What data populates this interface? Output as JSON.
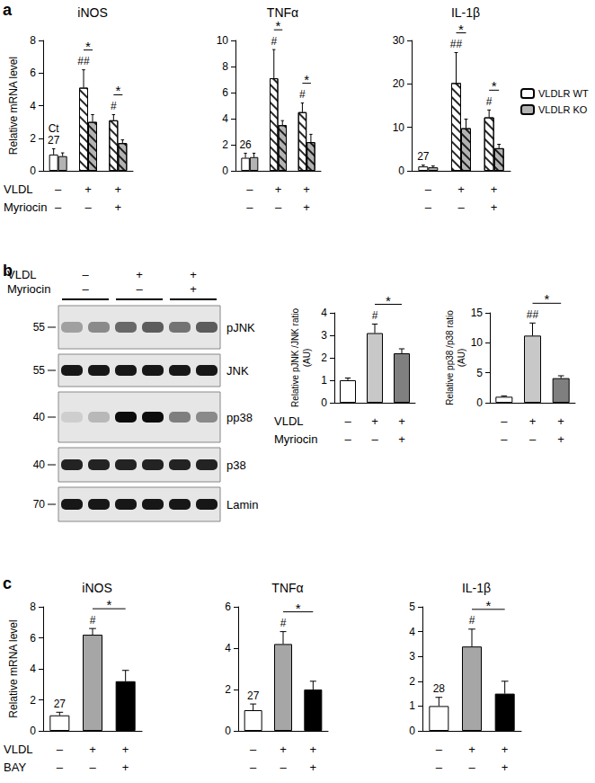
{
  "panels": [
    "a",
    "b",
    "c"
  ],
  "chart_data": [
    {
      "type": "bar",
      "title": "iNOS",
      "y_label": "Relative mRNA level",
      "categories": [
        null,
        null,
        null
      ],
      "conditions": [
        {
          "label": "VLDL",
          "values": [
            "–",
            "+",
            "+"
          ]
        },
        {
          "label": "Myriocin",
          "values": [
            "–",
            "–",
            "+"
          ]
        }
      ],
      "ylim": [
        0,
        8
      ],
      "yticks": [
        0,
        2,
        4,
        6,
        8
      ],
      "series": [
        {
          "name": "VLDLR WT",
          "color": "#ffffff",
          "values": [
            1.0,
            5.1,
            3.1
          ],
          "errors": [
            0.35,
            1.1,
            0.35
          ],
          "marks": [
            "Ct\n27",
            "##",
            "#"
          ]
        },
        {
          "name": "VLDLR KO",
          "color": "#b3b3b3",
          "values": [
            0.9,
            3.0,
            1.7
          ],
          "errors": [
            0.2,
            0.45,
            0.2
          ]
        }
      ],
      "significance": [
        {
          "text": "*",
          "category": 1
        },
        {
          "text": "*",
          "category": 2
        }
      ]
    },
    {
      "type": "bar",
      "title": "TNFα",
      "categories": [
        null,
        null,
        null
      ],
      "conditions": [
        {
          "values": [
            "–",
            "+",
            "+"
          ]
        },
        {
          "values": [
            "–",
            "–",
            "+"
          ]
        }
      ],
      "ylim": [
        0,
        10
      ],
      "yticks": [
        0,
        2,
        4,
        6,
        8,
        10
      ],
      "series": [
        {
          "name": "VLDLR WT",
          "color": "#ffffff",
          "values": [
            1.0,
            7.1,
            4.5
          ],
          "errors": [
            0.35,
            2.2,
            0.7
          ],
          "marks": [
            "26",
            "#",
            "#"
          ]
        },
        {
          "name": "VLDLR KO",
          "color": "#b3b3b3",
          "values": [
            1.05,
            3.5,
            2.2
          ],
          "errors": [
            0.3,
            0.35,
            0.6
          ]
        }
      ],
      "significance": [
        {
          "text": "*",
          "category": 1
        },
        {
          "text": "*",
          "category": 2
        }
      ]
    },
    {
      "type": "bar",
      "title": "IL-1β",
      "legend": "top-right",
      "categories": [
        null,
        null,
        null
      ],
      "conditions": [
        {
          "values": [
            "–",
            "+",
            "+"
          ]
        },
        {
          "values": [
            "–",
            "–",
            "+"
          ]
        }
      ],
      "ylim": [
        0,
        30
      ],
      "yticks": [
        0,
        10,
        20,
        30
      ],
      "series": [
        {
          "name": "VLDLR WT",
          "color": "#ffffff",
          "values": [
            1.0,
            20.2,
            12.3
          ],
          "errors": [
            0.3,
            7.0,
            1.7
          ],
          "marks": [
            "27",
            "##",
            "#"
          ]
        },
        {
          "name": "VLDLR KO",
          "color": "#b3b3b3",
          "values": [
            0.8,
            9.8,
            5.2
          ],
          "errors": [
            0.3,
            2.1,
            0.9
          ]
        }
      ],
      "significance": [
        {
          "text": "*",
          "category": 1
        },
        {
          "text": "*",
          "category": 2
        }
      ]
    },
    {
      "type": "bar",
      "y_label": "Relative pJNK /JNK ratio\n(AU)",
      "categories": [
        null,
        null,
        null
      ],
      "conditions": [
        {
          "label": "VLDL",
          "values": [
            "–",
            "+",
            "+"
          ]
        },
        {
          "label": "Myriocin",
          "values": [
            "–",
            "–",
            "+"
          ]
        }
      ],
      "ylim": [
        0,
        4
      ],
      "yticks": [
        0,
        1,
        2,
        3,
        4
      ],
      "values": [
        1.0,
        3.1,
        2.2
      ],
      "errors": [
        0.1,
        0.4,
        0.2
      ],
      "colors": [
        "#ffffff",
        "#c8c8c8",
        "#7f7f7f"
      ],
      "marks": [
        null,
        "#",
        null
      ],
      "significance": [
        {
          "text": "*",
          "categories": [
            1,
            2
          ]
        }
      ]
    },
    {
      "type": "bar",
      "y_label": "Relative pp38 /p38 ratio\n(AU)",
      "categories": [
        null,
        null,
        null
      ],
      "conditions": [
        {
          "values": [
            "–",
            "+",
            "+"
          ]
        },
        {
          "values": [
            "–",
            "–",
            "+"
          ]
        }
      ],
      "ylim": [
        0,
        15
      ],
      "yticks": [
        0,
        5,
        10,
        15
      ],
      "values": [
        1.0,
        11.2,
        4.1
      ],
      "errors": [
        0.15,
        2.1,
        0.4
      ],
      "colors": [
        "#ffffff",
        "#c8c8c8",
        "#7f7f7f"
      ],
      "marks": [
        null,
        "##",
        null
      ],
      "significance": [
        {
          "text": "*",
          "categories": [
            1,
            2
          ]
        }
      ]
    },
    {
      "type": "bar",
      "title": "iNOS",
      "y_label": "Relative mRNA level",
      "categories": [
        null,
        null,
        null
      ],
      "conditions": [
        {
          "label": "VLDL",
          "values": [
            "–",
            "+",
            "+"
          ]
        },
        {
          "label": "BAY",
          "values": [
            "–",
            "–",
            "+"
          ]
        }
      ],
      "ylim": [
        0,
        8
      ],
      "yticks": [
        0,
        2,
        4,
        6,
        8
      ],
      "values": [
        1.0,
        6.2,
        3.2
      ],
      "errors": [
        0.2,
        0.4,
        0.7
      ],
      "colors": [
        "#ffffff",
        "#a6a6a6",
        "#000000"
      ],
      "marks": [
        "27",
        "#",
        null
      ],
      "significance": [
        {
          "text": "*",
          "categories": [
            1,
            2
          ]
        }
      ]
    },
    {
      "type": "bar",
      "title": "TNFα",
      "categories": [
        null,
        null,
        null
      ],
      "conditions": [
        {
          "values": [
            "–",
            "+",
            "+"
          ]
        },
        {
          "values": [
            "–",
            "–",
            "+"
          ]
        }
      ],
      "ylim": [
        0,
        6
      ],
      "yticks": [
        0,
        2,
        4,
        6
      ],
      "values": [
        1.0,
        4.2,
        2.0
      ],
      "errors": [
        0.3,
        0.6,
        0.4
      ],
      "colors": [
        "#ffffff",
        "#a6a6a6",
        "#000000"
      ],
      "marks": [
        "27",
        "#",
        null
      ],
      "significance": [
        {
          "text": "*",
          "categories": [
            1,
            2
          ]
        }
      ]
    },
    {
      "type": "bar",
      "title": "IL-1β",
      "categories": [
        null,
        null,
        null
      ],
      "conditions": [
        {
          "values": [
            "–",
            "+",
            "+"
          ]
        },
        {
          "values": [
            "–",
            "–",
            "+"
          ]
        }
      ],
      "ylim": [
        0,
        5
      ],
      "yticks": [
        0,
        1,
        2,
        3,
        4,
        5
      ],
      "values": [
        1.0,
        3.4,
        1.5
      ],
      "errors": [
        0.35,
        0.7,
        0.5
      ],
      "colors": [
        "#ffffff",
        "#a6a6a6",
        "#000000"
      ],
      "marks": [
        "28",
        "#",
        null
      ],
      "significance": [
        {
          "text": "*",
          "categories": [
            1,
            2
          ]
        }
      ]
    }
  ],
  "blot": {
    "conditions": [
      {
        "label": "VLDL",
        "values": [
          "–",
          "+",
          "+"
        ]
      },
      {
        "label": "Myriocin",
        "values": [
          "–",
          "–",
          "+"
        ]
      }
    ],
    "rows": [
      {
        "label": "pJNK",
        "ladder": 55,
        "intensity": [
          0.3,
          0.4,
          0.55,
          0.6,
          0.5,
          0.6
        ]
      },
      {
        "label": "JNK",
        "ladder": 55,
        "intensity": [
          0.9,
          0.9,
          0.9,
          0.9,
          0.9,
          0.9
        ]
      },
      {
        "label": "pp38",
        "ladder": 40,
        "intensity": [
          0.1,
          0.2,
          0.95,
          0.95,
          0.45,
          0.4
        ]
      },
      {
        "label": "p38",
        "ladder": 40,
        "intensity": [
          0.85,
          0.85,
          0.85,
          0.85,
          0.85,
          0.85
        ]
      },
      {
        "label": "Lamin",
        "ladder": 70,
        "intensity": [
          0.9,
          0.9,
          0.9,
          0.9,
          0.9,
          0.9
        ]
      }
    ]
  }
}
